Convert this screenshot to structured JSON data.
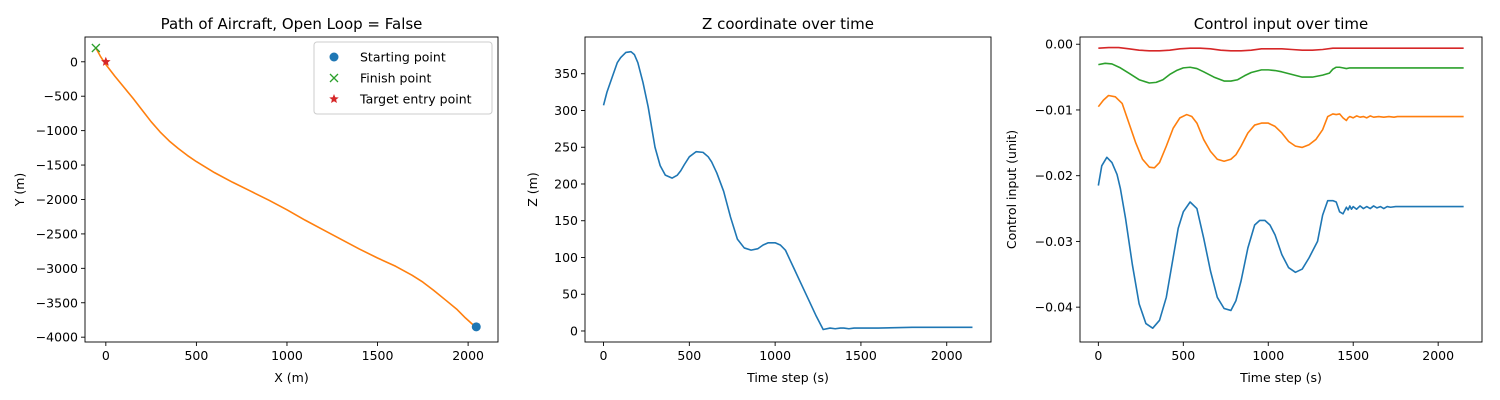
{
  "charts": [
    {
      "type": "line",
      "title": "Path of Aircraft, Open Loop = False",
      "xlabel": "X (m)",
      "ylabel": "Y (m)",
      "xlim": [
        -115,
        2165
      ],
      "ylim": [
        -4070,
        360
      ],
      "xticks": [
        0,
        500,
        1000,
        1500,
        2000
      ],
      "xticklabels": [
        "0",
        "500",
        "1000",
        "1500",
        "2000"
      ],
      "yticks": [
        -4000,
        -3500,
        -3000,
        -2500,
        -2000,
        -1500,
        -1000,
        -500,
        0
      ],
      "yticklabels": [
        "−4000",
        "−3500",
        "−3000",
        "−2500",
        "−2000",
        "−1500",
        "−1000",
        "−500",
        "0"
      ],
      "series": [
        {
          "color": "#ff7f0e",
          "style": "line",
          "x": [
            2040,
            1985,
            1940,
            1880,
            1810,
            1750,
            1690,
            1600,
            1500,
            1400,
            1300,
            1200,
            1100,
            1000,
            900,
            800,
            700,
            600,
            500,
            450,
            400,
            350,
            300,
            250,
            200,
            150,
            100,
            50,
            0,
            -30,
            -55
          ],
          "y": [
            -3850,
            -3720,
            -3600,
            -3470,
            -3320,
            -3200,
            -3100,
            -2970,
            -2850,
            -2720,
            -2580,
            -2440,
            -2300,
            -2150,
            -2010,
            -1880,
            -1750,
            -1610,
            -1450,
            -1360,
            -1260,
            -1150,
            -1020,
            -870,
            -700,
            -530,
            -370,
            -210,
            -40,
            80,
            200
          ]
        },
        {
          "name": "Starting point",
          "color": "#1f77b4",
          "style": "marker",
          "marker": "circle",
          "x": [
            2045
          ],
          "y": [
            -3850
          ]
        },
        {
          "name": "Finish point",
          "color": "#2ca02c",
          "style": "marker",
          "marker": "x",
          "x": [
            -55
          ],
          "y": [
            200
          ]
        },
        {
          "name": "Target entry point",
          "color": "#d62728",
          "style": "marker",
          "marker": "star",
          "x": [
            0
          ],
          "y": [
            0
          ]
        }
      ],
      "legend": "top-right",
      "grid": false
    },
    {
      "type": "line",
      "title": "Z coordinate over time",
      "xlabel": "Time step (s)",
      "ylabel": "Z (m)",
      "xlim": [
        -108,
        2258
      ],
      "ylim": [
        -15,
        400
      ],
      "xticks": [
        0,
        500,
        1000,
        1500,
        2000
      ],
      "xticklabels": [
        "0",
        "500",
        "1000",
        "1500",
        "2000"
      ],
      "yticks": [
        0,
        50,
        100,
        150,
        200,
        250,
        300,
        350
      ],
      "yticklabels": [
        "0",
        "50",
        "100",
        "150",
        "200",
        "250",
        "300",
        "350"
      ],
      "series": [
        {
          "color": "#1f77b4",
          "style": "line",
          "x": [
            0,
            20,
            50,
            80,
            100,
            130,
            160,
            180,
            200,
            230,
            260,
            300,
            330,
            360,
            400,
            430,
            450,
            470,
            500,
            540,
            580,
            610,
            630,
            660,
            700,
            740,
            780,
            820,
            860,
            900,
            930,
            960,
            1000,
            1030,
            1060,
            1090,
            1110,
            1140,
            1170,
            1200,
            1240,
            1280,
            1320,
            1350,
            1380,
            1400,
            1430,
            1460,
            1500,
            1600,
            1800,
            2000,
            2150
          ],
          "y": [
            307,
            325,
            345,
            365,
            372,
            379,
            380,
            376,
            365,
            338,
            305,
            250,
            225,
            212,
            208,
            212,
            218,
            226,
            237,
            244,
            243,
            237,
            230,
            215,
            190,
            155,
            125,
            113,
            110,
            112,
            117,
            120,
            120,
            117,
            110,
            95,
            85,
            70,
            55,
            40,
            20,
            2,
            4,
            3,
            4,
            4,
            3,
            4,
            4,
            4,
            5,
            5,
            5
          ]
        }
      ],
      "grid": false
    },
    {
      "type": "line",
      "title": "Control input over time",
      "xlabel": "Time step (s)",
      "ylabel": "Control input (unit)",
      "xlim": [
        -108,
        2258
      ],
      "ylim": [
        -0.0453,
        0.0011
      ],
      "xticks": [
        0,
        500,
        1000,
        1500,
        2000
      ],
      "xticklabels": [
        "0",
        "500",
        "1000",
        "1500",
        "2000"
      ],
      "yticks": [
        -0.04,
        -0.03,
        -0.02,
        -0.01,
        0.0
      ],
      "yticklabels": [
        "−0.04",
        "−0.03",
        "−0.02",
        "−0.01",
        "0.00"
      ],
      "series": [
        {
          "color": "#1f77b4",
          "style": "line",
          "x": [
            0,
            20,
            50,
            80,
            110,
            130,
            160,
            200,
            240,
            280,
            320,
            360,
            400,
            440,
            470,
            500,
            540,
            580,
            620,
            660,
            700,
            740,
            780,
            810,
            840,
            880,
            920,
            950,
            980,
            1010,
            1040,
            1080,
            1120,
            1160,
            1200,
            1240,
            1260,
            1290,
            1320,
            1350,
            1380,
            1400,
            1420,
            1440,
            1460,
            1470,
            1480,
            1490,
            1500,
            1520,
            1540,
            1560,
            1580,
            1600,
            1620,
            1640,
            1660,
            1680,
            1700,
            1720,
            1750,
            1800,
            2000,
            2150
          ],
          "y": [
            -0.0215,
            -0.0185,
            -0.0172,
            -0.018,
            -0.0198,
            -0.022,
            -0.0265,
            -0.0335,
            -0.0395,
            -0.0425,
            -0.0432,
            -0.042,
            -0.0385,
            -0.0325,
            -0.028,
            -0.0255,
            -0.024,
            -0.025,
            -0.0295,
            -0.0345,
            -0.0385,
            -0.0402,
            -0.0405,
            -0.039,
            -0.036,
            -0.031,
            -0.0275,
            -0.0268,
            -0.0268,
            -0.0275,
            -0.029,
            -0.032,
            -0.034,
            -0.0347,
            -0.0342,
            -0.0325,
            -0.0315,
            -0.03,
            -0.026,
            -0.0238,
            -0.0238,
            -0.024,
            -0.0255,
            -0.0258,
            -0.0248,
            -0.0252,
            -0.0246,
            -0.0251,
            -0.0247,
            -0.0251,
            -0.0246,
            -0.025,
            -0.0247,
            -0.025,
            -0.0246,
            -0.0249,
            -0.0247,
            -0.025,
            -0.0247,
            -0.0248,
            -0.0247,
            -0.0247,
            -0.0247,
            -0.0247
          ]
        },
        {
          "color": "#ff7f0e",
          "style": "line",
          "x": [
            0,
            30,
            60,
            100,
            140,
            180,
            220,
            260,
            300,
            330,
            360,
            400,
            440,
            480,
            520,
            550,
            580,
            620,
            660,
            700,
            740,
            780,
            810,
            840,
            880,
            920,
            960,
            1000,
            1040,
            1080,
            1120,
            1160,
            1200,
            1240,
            1280,
            1320,
            1350,
            1380,
            1400,
            1420,
            1440,
            1460,
            1470,
            1480,
            1500,
            1520,
            1540,
            1560,
            1580,
            1600,
            1620,
            1650,
            1680,
            1710,
            1740,
            1760,
            1800,
            2000,
            2150
          ],
          "y": [
            -0.0095,
            -0.0085,
            -0.0078,
            -0.008,
            -0.009,
            -0.012,
            -0.015,
            -0.0175,
            -0.0187,
            -0.0188,
            -0.018,
            -0.0155,
            -0.0128,
            -0.0112,
            -0.0107,
            -0.011,
            -0.012,
            -0.0145,
            -0.0163,
            -0.0175,
            -0.0178,
            -0.0175,
            -0.0168,
            -0.0155,
            -0.0135,
            -0.0123,
            -0.012,
            -0.012,
            -0.0125,
            -0.0135,
            -0.0148,
            -0.0155,
            -0.0157,
            -0.0153,
            -0.0145,
            -0.013,
            -0.011,
            -0.0106,
            -0.0107,
            -0.0106,
            -0.0112,
            -0.0116,
            -0.0112,
            -0.011,
            -0.0112,
            -0.0109,
            -0.0111,
            -0.011,
            -0.0112,
            -0.0109,
            -0.0111,
            -0.011,
            -0.0111,
            -0.011,
            -0.0111,
            -0.011,
            -0.011,
            -0.011,
            -0.011
          ]
        },
        {
          "color": "#2ca02c",
          "style": "line",
          "x": [
            0,
            40,
            80,
            130,
            180,
            240,
            300,
            340,
            380,
            420,
            460,
            500,
            540,
            580,
            620,
            680,
            740,
            780,
            820,
            860,
            900,
            960,
            1000,
            1040,
            1080,
            1140,
            1200,
            1260,
            1320,
            1360,
            1380,
            1400,
            1420,
            1440,
            1460,
            1480,
            1500,
            1600,
            1800,
            2000,
            2150
          ],
          "y": [
            -0.0031,
            -0.0029,
            -0.003,
            -0.0036,
            -0.0044,
            -0.0054,
            -0.0059,
            -0.0058,
            -0.0054,
            -0.0046,
            -0.004,
            -0.0036,
            -0.0035,
            -0.0037,
            -0.0042,
            -0.005,
            -0.0056,
            -0.0056,
            -0.0054,
            -0.0048,
            -0.0043,
            -0.0039,
            -0.0039,
            -0.004,
            -0.0042,
            -0.0046,
            -0.005,
            -0.005,
            -0.0047,
            -0.0044,
            -0.0038,
            -0.0035,
            -0.0035,
            -0.0036,
            -0.0037,
            -0.0036,
            -0.0036,
            -0.0036,
            -0.0036,
            -0.0036,
            -0.0036
          ]
        },
        {
          "color": "#d62728",
          "style": "line",
          "x": [
            0,
            60,
            120,
            180,
            240,
            300,
            360,
            420,
            480,
            540,
            600,
            660,
            720,
            780,
            840,
            900,
            960,
            1020,
            1080,
            1140,
            1200,
            1260,
            1320,
            1380,
            1440,
            1500,
            1600,
            1800,
            2000,
            2150
          ],
          "y": [
            -0.0006,
            -0.0005,
            -0.0005,
            -0.0007,
            -0.0009,
            -0.001,
            -0.001,
            -0.0009,
            -0.0007,
            -0.0006,
            -0.0006,
            -0.0007,
            -0.0009,
            -0.001,
            -0.001,
            -0.0009,
            -0.0007,
            -0.0007,
            -0.0007,
            -0.0008,
            -0.0009,
            -0.0009,
            -0.0008,
            -0.0006,
            -0.0006,
            -0.0006,
            -0.0006,
            -0.0006,
            -0.0006,
            -0.0006
          ]
        }
      ],
      "grid": false
    }
  ]
}
